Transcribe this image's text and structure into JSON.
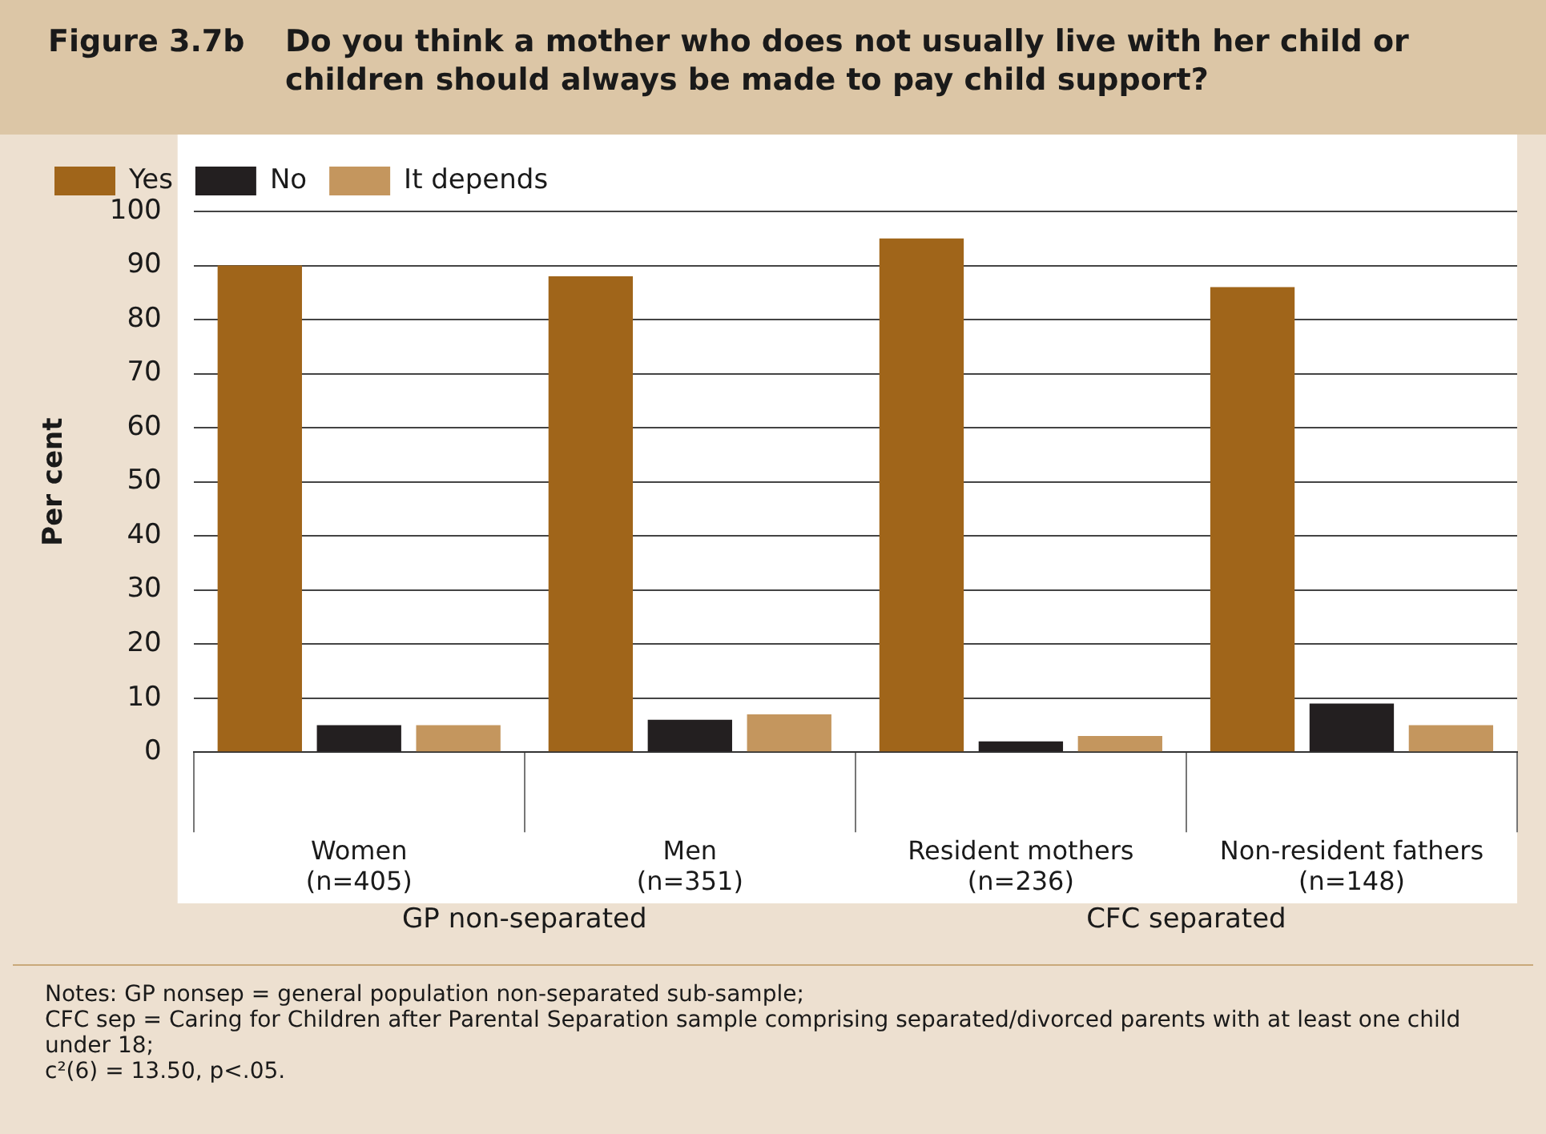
{
  "chart_data": {
    "type": "bar",
    "title": "Figure 3.7b",
    "subtitle": "Do you think a mother who does not usually live with her child or children should always be made to pay child support?",
    "ylabel": "Per cent",
    "categories": [
      "Women\n(n=405)",
      "Men\n(n=351)",
      "Resident mothers\n(n=236)",
      "Non-resident fathers\n(n=148)"
    ],
    "series": [
      {
        "name": "Yes",
        "color": "#a0651a",
        "values": [
          90,
          88,
          95,
          86
        ]
      },
      {
        "name": "No",
        "color": "#231f20",
        "values": [
          5,
          6,
          2,
          9
        ]
      },
      {
        "name": "It depends",
        "color": "#c4965e",
        "values": [
          5,
          7,
          3,
          5
        ]
      }
    ],
    "ylim": [
      0,
      100
    ],
    "yticks": [
      0,
      10,
      20,
      30,
      40,
      50,
      60,
      70,
      80,
      90,
      100
    ],
    "grid": "y",
    "legend": "top left",
    "annotations": [
      "GP non-separated",
      "CFC separated",
      "Notes: GP nonsep = general population non-separated sub-sample;",
      "CFC sep = Caring for Children after Parental Separation sample comprising separated/divorced parents with at least one child under 18;",
      "c²(6) = 13.50, p<.05."
    ]
  }
}
